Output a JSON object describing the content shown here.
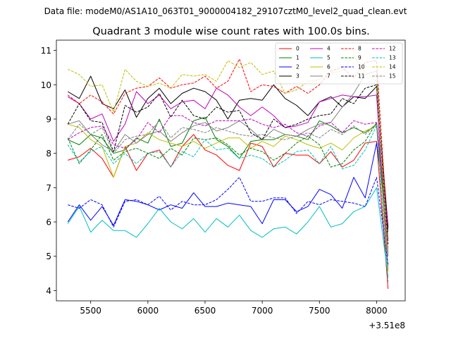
{
  "figure": {
    "suptitle": "Data file: modeM0/AS1A10_063T01_9000004182_29107cztM0_level2_quad_clean.evt",
    "offset_label": "+3.51e8"
  },
  "chart_data": {
    "type": "line",
    "title": "Quadrant 3 module wise count rates with 100.0s bins.",
    "xlabel": "",
    "ylabel": "",
    "x_offset": 351000000,
    "xlim": [
      351005200,
      351008250
    ],
    "ylim": [
      3.7,
      11.3
    ],
    "xticks": [
      5500,
      6000,
      6500,
      7000,
      7500,
      8000
    ],
    "yticks": [
      4,
      5,
      6,
      7,
      8,
      9,
      10,
      11
    ],
    "grid": false,
    "legend": "top-right",
    "x": [
      351005300,
      351005400,
      351005500,
      351005600,
      351005700,
      351005800,
      351005900,
      351006000,
      351006100,
      351006200,
      351006300,
      351006400,
      351006500,
      351006600,
      351006700,
      351006800,
      351006900,
      351007000,
      351007100,
      351007200,
      351007300,
      351007400,
      351007500,
      351007600,
      351007700,
      351007800,
      351007900,
      351008000,
      351008100
    ],
    "series": [
      {
        "name": "0",
        "color": "#ff0000",
        "dash": "solid",
        "values": [
          7.8,
          7.9,
          8.15,
          7.85,
          7.3,
          8.2,
          7.5,
          8.0,
          8.1,
          7.6,
          8.2,
          8.55,
          8.1,
          7.95,
          7.65,
          7.5,
          8.3,
          8.2,
          7.6,
          8.0,
          7.95,
          7.95,
          7.7,
          8.05,
          7.6,
          7.8,
          8.3,
          8.35,
          4.05
        ]
      },
      {
        "name": "1",
        "color": "#008000",
        "dash": "solid",
        "values": [
          8.4,
          8.25,
          8.55,
          8.45,
          8.0,
          8.1,
          8.45,
          8.3,
          9.0,
          8.2,
          8.3,
          8.95,
          9.05,
          8.4,
          8.2,
          7.85,
          8.35,
          8.4,
          8.4,
          8.55,
          8.5,
          8.4,
          8.95,
          8.8,
          8.6,
          8.75,
          8.6,
          8.85,
          5.7
        ]
      },
      {
        "name": "2",
        "color": "#0000ff",
        "dash": "solid",
        "values": [
          6.0,
          6.5,
          6.05,
          6.45,
          5.9,
          6.65,
          6.6,
          6.5,
          6.35,
          6.5,
          6.4,
          6.85,
          6.45,
          6.45,
          6.55,
          6.5,
          6.45,
          5.95,
          6.65,
          6.65,
          6.3,
          6.45,
          6.95,
          6.8,
          6.4,
          7.3,
          6.7,
          8.3,
          5.8
        ]
      },
      {
        "name": "3",
        "color": "#000000",
        "dash": "solid",
        "values": [
          9.8,
          9.6,
          10.25,
          9.45,
          9.3,
          9.85,
          9.05,
          9.6,
          9.9,
          9.45,
          9.75,
          9.9,
          9.8,
          9.55,
          9.0,
          9.55,
          9.6,
          9.55,
          10.0,
          9.6,
          9.4,
          9.1,
          9.5,
          9.65,
          9.35,
          9.65,
          9.6,
          9.95,
          5.85
        ]
      },
      {
        "name": "4",
        "color": "#bf00bf",
        "dash": "solid",
        "values": [
          9.65,
          9.45,
          9.0,
          9.15,
          8.35,
          8.85,
          9.8,
          9.45,
          9.7,
          9.3,
          9.5,
          9.55,
          9.3,
          9.9,
          9.7,
          9.35,
          9.1,
          9.35,
          9.1,
          8.75,
          8.8,
          8.9,
          9.5,
          9.6,
          9.7,
          9.65,
          9.65,
          9.7,
          4.6
        ]
      },
      {
        "name": "5",
        "color": "#00bfbf",
        "dash": "solid",
        "values": [
          5.95,
          6.45,
          5.7,
          6.05,
          5.75,
          5.75,
          5.55,
          5.95,
          6.4,
          6.0,
          5.8,
          6.1,
          5.7,
          6.1,
          5.85,
          6.2,
          5.75,
          5.55,
          5.8,
          5.85,
          5.65,
          6.0,
          6.45,
          5.85,
          5.95,
          6.3,
          6.45,
          7.0,
          4.4
        ]
      },
      {
        "name": "6",
        "color": "#bfbf00",
        "dash": "solid",
        "values": [
          8.85,
          8.75,
          8.4,
          8.2,
          7.3,
          8.2,
          8.3,
          8.6,
          8.4,
          8.3,
          8.2,
          8.35,
          8.15,
          8.3,
          8.45,
          8.45,
          8.15,
          8.35,
          8.2,
          8.5,
          8.4,
          8.25,
          8.15,
          8.3,
          8.1,
          8.45,
          8.65,
          8.8,
          4.55
        ]
      },
      {
        "name": "7",
        "color": "#808080",
        "dash": "solid",
        "values": [
          8.85,
          8.95,
          8.55,
          8.25,
          8.05,
          8.55,
          8.3,
          8.55,
          8.65,
          8.35,
          8.6,
          8.8,
          8.9,
          8.65,
          8.75,
          8.95,
          8.7,
          8.4,
          8.7,
          8.55,
          8.5,
          8.7,
          8.85,
          8.9,
          9.35,
          9.75,
          10.3,
          10.4,
          5.0
        ]
      },
      {
        "name": "8",
        "color": "#ff0000",
        "dash": "dashed",
        "values": [
          9.7,
          9.45,
          9.7,
          9.5,
          9.15,
          9.75,
          9.9,
          9.95,
          10.2,
          9.9,
          10.0,
          10.05,
          10.25,
          9.9,
          10.1,
          10.75,
          9.8,
          10.0,
          9.95,
          9.75,
          9.95,
          9.75,
          10.0,
          10.4,
          10.5,
          10.2,
          10.65,
          10.7,
          5.45
        ]
      },
      {
        "name": "9",
        "color": "#008000",
        "dash": "dashed",
        "values": [
          8.45,
          7.7,
          8.1,
          8.55,
          7.8,
          8.05,
          8.15,
          8.0,
          7.85,
          8.15,
          7.95,
          8.45,
          8.4,
          8.45,
          8.25,
          7.95,
          8.15,
          8.05,
          7.8,
          8.0,
          8.3,
          8.5,
          8.25,
          7.6,
          7.7,
          8.1,
          8.35,
          8.9,
          5.2
        ]
      },
      {
        "name": "10",
        "color": "#0000ff",
        "dash": "dashed",
        "values": [
          6.5,
          6.4,
          6.65,
          6.5,
          5.85,
          6.6,
          6.65,
          6.5,
          6.75,
          6.35,
          6.6,
          6.5,
          6.5,
          6.65,
          6.95,
          7.3,
          6.6,
          6.6,
          6.7,
          6.7,
          6.25,
          6.6,
          6.5,
          6.65,
          6.6,
          6.55,
          6.45,
          7.3,
          4.75
        ]
      },
      {
        "name": "11",
        "color": "#000000",
        "dash": "dashed",
        "values": [
          8.85,
          9.45,
          8.95,
          8.9,
          8.05,
          9.4,
          9.2,
          9.35,
          9.75,
          9.05,
          9.55,
          9.1,
          9.0,
          9.35,
          9.2,
          9.25,
          8.6,
          8.4,
          9.0,
          8.75,
          8.85,
          9.0,
          9.1,
          9.15,
          9.6,
          9.45,
          9.9,
          10.0,
          5.35
        ]
      },
      {
        "name": "12",
        "color": "#bf00bf",
        "dash": "dashed",
        "values": [
          8.4,
          8.6,
          8.75,
          8.8,
          8.25,
          8.15,
          8.4,
          8.9,
          8.6,
          9.1,
          9.1,
          8.9,
          8.8,
          8.95,
          8.95,
          8.95,
          9.0,
          8.85,
          8.75,
          8.85,
          8.6,
          8.5,
          8.8,
          8.9,
          8.6,
          8.95,
          8.85,
          8.9,
          5.9
        ]
      },
      {
        "name": "13",
        "color": "#00bfbf",
        "dash": "dashed",
        "values": [
          8.25,
          7.75,
          8.05,
          8.2,
          7.7,
          8.0,
          7.7,
          8.0,
          8.05,
          7.6,
          8.05,
          7.9,
          8.4,
          8.1,
          8.15,
          7.85,
          7.95,
          7.85,
          7.6,
          7.8,
          8.05,
          8.1,
          7.7,
          8.2,
          7.55,
          7.65,
          8.1,
          8.8,
          4.25
        ]
      },
      {
        "name": "14",
        "color": "#bfbf00",
        "dash": "dashed",
        "values": [
          10.45,
          10.3,
          9.95,
          10.0,
          9.2,
          10.45,
          10.1,
          9.95,
          10.05,
          9.9,
          10.3,
          10.25,
          10.3,
          10.1,
          10.7,
          10.5,
          10.65,
          10.3,
          10.4,
          9.75,
          9.85,
          10.1,
          10.15,
          10.35,
          10.4,
          10.85,
          10.35,
          10.1,
          5.1
        ]
      },
      {
        "name": "15",
        "color": "#808080",
        "dash": "dashed",
        "values": [
          8.4,
          8.85,
          8.55,
          8.75,
          8.0,
          8.4,
          8.5,
          8.55,
          8.95,
          8.45,
          8.75,
          8.7,
          8.6,
          8.75,
          8.65,
          8.55,
          8.5,
          8.55,
          8.45,
          8.4,
          8.5,
          8.6,
          8.45,
          8.7,
          8.55,
          8.8,
          8.55,
          8.85,
          5.15
        ]
      }
    ]
  }
}
